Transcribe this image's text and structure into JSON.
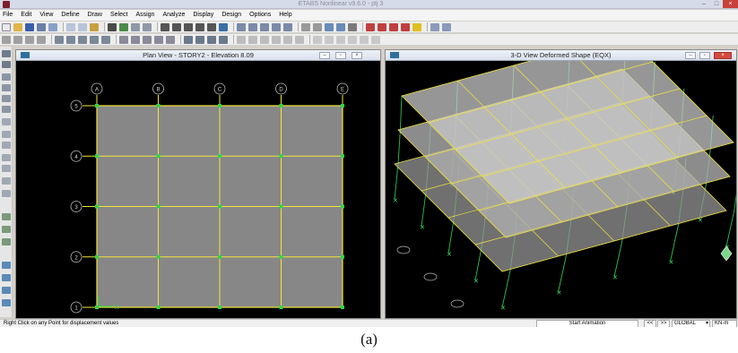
{
  "window": {
    "title": "ETABS Nonlinear v9.6.0 - ptj 3"
  },
  "menu": [
    "File",
    "Edit",
    "View",
    "Define",
    "Draw",
    "Select",
    "Assign",
    "Analyze",
    "Display",
    "Design",
    "Options",
    "Help"
  ],
  "plan_view": {
    "title": "Plan View - STORY2 - Elevation 8.09",
    "grid_cols": [
      "A",
      "B",
      "C",
      "D",
      "E"
    ],
    "grid_rows": [
      "5",
      "4",
      "3",
      "2",
      "1"
    ]
  },
  "view_3d": {
    "title": "3-D View  Deformed Shape (EQX)"
  },
  "status": {
    "message": "Right Click on any Point for displacement values",
    "animation_button": "Start Animation",
    "prev": "<<",
    "next": ">>",
    "coord_system": "GLOBAL",
    "units": "KN-m"
  },
  "caption": "(a)",
  "colors": {
    "frame": "#f2e43a",
    "joint": "#2bd64a",
    "slab": "#888888",
    "deformed_outline": "#31c04a"
  }
}
